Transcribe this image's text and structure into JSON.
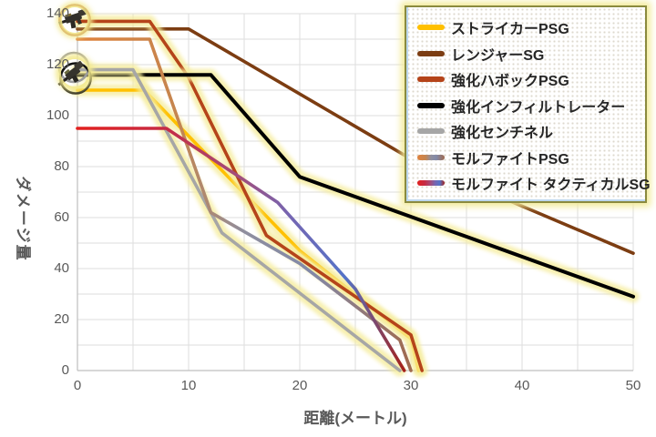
{
  "chart_data": {
    "type": "line",
    "title": "",
    "xlabel": "距離(メートル)",
    "ylabel": "ダメージ量",
    "xlim": [
      0,
      50
    ],
    "ylim": [
      0,
      140
    ],
    "x_ticks": [
      0,
      10,
      20,
      30,
      40,
      50
    ],
    "y_ticks": [
      0,
      20,
      40,
      60,
      80,
      100,
      120,
      140
    ],
    "x_grid_step": 5,
    "y_grid_step": 10,
    "grid_on": true,
    "grid_color": "#DEDEDE",
    "axis_color": "#BFBFBF",
    "tick_color": "#595959",
    "glow_color": "#F5EC9B",
    "legend_position": "top-right",
    "series": [
      {
        "name": "ストライカーPSG",
        "color": "#FFC000",
        "glow": true,
        "points": [
          [
            0,
            110
          ],
          [
            6,
            110
          ],
          [
            20,
            47
          ],
          [
            30,
            12.5
          ],
          [
            30.7,
            0
          ]
        ]
      },
      {
        "name": "レンジャーSG",
        "color": "#7C3D12",
        "glow": false,
        "points": [
          [
            0,
            134
          ],
          [
            10,
            134
          ],
          [
            30,
            83
          ],
          [
            50,
            46
          ]
        ]
      },
      {
        "name": "強化ハボックPSG",
        "color": "#B5441A",
        "glow": true,
        "points": [
          [
            0,
            137
          ],
          [
            6.5,
            137
          ],
          [
            10,
            115
          ],
          [
            17,
            53
          ],
          [
            30,
            14
          ],
          [
            31,
            0
          ]
        ]
      },
      {
        "name": "強化インフィルトレーター",
        "color": "#000000",
        "glow": true,
        "points": [
          [
            0,
            116
          ],
          [
            12,
            116
          ],
          [
            20,
            76
          ],
          [
            50,
            29
          ]
        ]
      },
      {
        "name": "強化センチネル",
        "color": "#A6A6A6",
        "glow": true,
        "points": [
          [
            0,
            118
          ],
          [
            5,
            118
          ],
          [
            13,
            54
          ],
          [
            29,
            0
          ]
        ]
      },
      {
        "name": "モルファイトPSG",
        "glow": false,
        "gradient": [
          [
            0,
            "#E0823D"
          ],
          [
            0.3,
            "#C5854F"
          ],
          [
            0.5,
            "#8F8E9E"
          ],
          [
            0.7,
            "#8289A8"
          ],
          [
            1,
            "#A06A4E"
          ]
        ],
        "points": [
          [
            0,
            130
          ],
          [
            6.5,
            130
          ],
          [
            12,
            62
          ],
          [
            20,
            42
          ],
          [
            29,
            12
          ],
          [
            30,
            0
          ]
        ]
      },
      {
        "name": "モルファイト タクティカルSG",
        "glow": false,
        "gradient": [
          [
            0,
            "#E2201E"
          ],
          [
            0.27,
            "#C62B44"
          ],
          [
            0.5,
            "#A04F7E"
          ],
          [
            0.65,
            "#7566B2"
          ],
          [
            0.82,
            "#5473C8"
          ],
          [
            1,
            "#A52019"
          ]
        ],
        "points": [
          [
            0,
            95
          ],
          [
            8,
            95
          ],
          [
            18,
            66
          ],
          [
            25,
            32
          ],
          [
            29.4,
            0
          ]
        ]
      }
    ]
  },
  "legend_style": {
    "border_color": "#8A8A3E",
    "glow_color": "#F2EA96",
    "accent_color": "#BDD7EE"
  },
  "icons": [
    {
      "name": "havoc-gun-icon",
      "ring_color": "#A6431F"
    },
    {
      "name": "sentinel-gun-icon",
      "ring_color": "#9C9C9C",
      "ring2_color": "#111111"
    }
  ]
}
